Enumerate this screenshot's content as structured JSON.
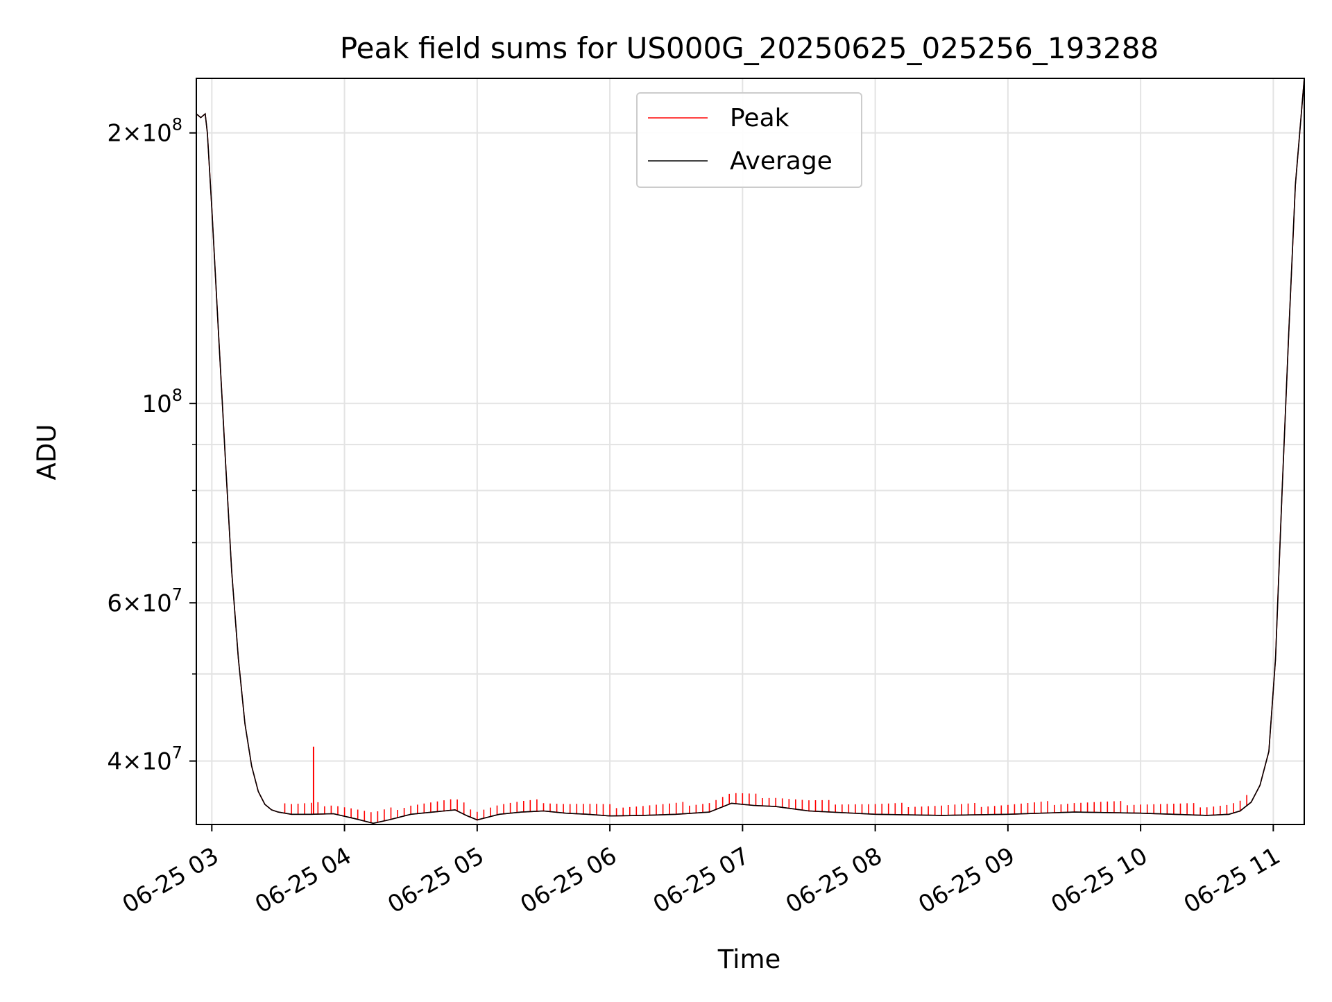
{
  "chart_data": {
    "type": "line",
    "title": "Peak field sums for US000G_20250625_025256_193288",
    "xlabel": "Time",
    "ylabel": "ADU",
    "y_scale": "log",
    "xlim": [
      "2025-06-25 02:53",
      "2025-06-25 11:14"
    ],
    "ylim": [
      34000000,
      230000000
    ],
    "grid": true,
    "legend_position": "upper center",
    "x_tick_labels": [
      "06-25 03",
      "06-25 04",
      "06-25 05",
      "06-25 06",
      "06-25 07",
      "06-25 08",
      "06-25 09",
      "06-25 10",
      "06-25 11"
    ],
    "x_ticks": [
      "2025-06-25 03:00",
      "2025-06-25 04:00",
      "2025-06-25 05:00",
      "2025-06-25 06:00",
      "2025-06-25 07:00",
      "2025-06-25 08:00",
      "2025-06-25 09:00",
      "2025-06-25 10:00",
      "2025-06-25 11:00"
    ],
    "y_major_ticks": [
      {
        "value": 200000000,
        "mantissa": "2",
        "exponent": "8"
      },
      {
        "value": 100000000,
        "mantissa": "",
        "exponent": "8"
      },
      {
        "value": 60000000,
        "mantissa": "6",
        "exponent": "7"
      },
      {
        "value": 40000000,
        "mantissa": "4",
        "exponent": "7"
      }
    ],
    "y_minor_ticks": [
      90000000,
      80000000,
      70000000,
      50000000
    ],
    "series": [
      {
        "name": "Peak",
        "color": "#ff0000",
        "spikes": [
          {
            "x": "2025-06-25 03:46",
            "y": 41500000
          }
        ]
      },
      {
        "name": "Average",
        "color": "#000000",
        "x": [
          "2025-06-25 02:53",
          "2025-06-25 02:55",
          "2025-06-25 02:57",
          "2025-06-25 02:58",
          "2025-06-25 03:00",
          "2025-06-25 03:03",
          "2025-06-25 03:06",
          "2025-06-25 03:09",
          "2025-06-25 03:12",
          "2025-06-25 03:15",
          "2025-06-25 03:18",
          "2025-06-25 03:21",
          "2025-06-25 03:24",
          "2025-06-25 03:27",
          "2025-06-25 03:30",
          "2025-06-25 03:36",
          "2025-06-25 03:45",
          "2025-06-25 03:55",
          "2025-06-25 04:05",
          "2025-06-25 04:13",
          "2025-06-25 04:20",
          "2025-06-25 04:30",
          "2025-06-25 04:40",
          "2025-06-25 04:50",
          "2025-06-25 04:55",
          "2025-06-25 05:00",
          "2025-06-25 05:10",
          "2025-06-25 05:20",
          "2025-06-25 05:30",
          "2025-06-25 05:40",
          "2025-06-25 05:50",
          "2025-06-25 06:00",
          "2025-06-25 06:15",
          "2025-06-25 06:30",
          "2025-06-25 06:45",
          "2025-06-25 06:55",
          "2025-06-25 07:05",
          "2025-06-25 07:15",
          "2025-06-25 07:30",
          "2025-06-25 08:00",
          "2025-06-25 08:30",
          "2025-06-25 09:00",
          "2025-06-25 09:30",
          "2025-06-25 10:00",
          "2025-06-25 10:30",
          "2025-06-25 10:40",
          "2025-06-25 10:45",
          "2025-06-25 10:50",
          "2025-06-25 10:54",
          "2025-06-25 10:58",
          "2025-06-25 11:01",
          "2025-06-25 11:04",
          "2025-06-25 11:07",
          "2025-06-25 11:10",
          "2025-06-25 11:14"
        ],
        "y": [
          210000000,
          208000000,
          210000000,
          200000000,
          165000000,
          120000000,
          88000000,
          65000000,
          52000000,
          44000000,
          39500000,
          37000000,
          35800000,
          35300000,
          35100000,
          34900000,
          34900000,
          34950000,
          34500000,
          34100000,
          34400000,
          34900000,
          35100000,
          35300000,
          34800000,
          34400000,
          34900000,
          35100000,
          35200000,
          35000000,
          34900000,
          34750000,
          34800000,
          34900000,
          35100000,
          35900000,
          35700000,
          35600000,
          35200000,
          34900000,
          34800000,
          34900000,
          35100000,
          35000000,
          34800000,
          34900000,
          35200000,
          36000000,
          37600000,
          41000000,
          52000000,
          80000000,
          120000000,
          175000000,
          230000000
        ]
      }
    ]
  }
}
